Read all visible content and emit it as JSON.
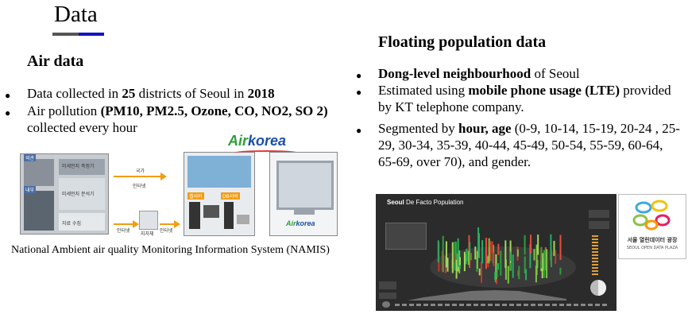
{
  "title": "Data",
  "colors": {
    "bar_gray": "#555555",
    "bar_blue": "#1414c8",
    "airkorea_green": "#2e9e3a",
    "airkorea_blue": "#1b4fa8",
    "arrow": "#f39c12"
  },
  "air": {
    "heading": "Air data",
    "b1": {
      "pre": "Data collected in ",
      "n": "25",
      "mid": " districts of Seoul in ",
      "year": "2018"
    },
    "b2": {
      "pre": "Air pollution ",
      "pollutants": "(PM10, PM2.5, Ozone, CO, NO2, SO 2)",
      "post": " collected every hour"
    },
    "figure": {
      "logo_air": "Air",
      "logo_korea": "korea",
      "label_guk": "국가",
      "label_internet": "인터넷",
      "label_web": "웹서버",
      "label_db": "DB서버",
      "label_inner": "내부",
      "label_outer": "외관",
      "label_local": "지자체",
      "label_internet2": "인터넷",
      "label_internet3": "인터넷",
      "label_analyzer": "미세먼지 분석기",
      "label_logger": "자료 수집",
      "label_pm": "미세먼지 측정기",
      "label_station": "측정소",
      "monitor_logo_air": "Air",
      "monitor_logo_korea": "korea"
    },
    "caption": "National Ambient air quality Monitoring Information System (NAMIS)"
  },
  "floating": {
    "heading": "Floating population data",
    "b1": {
      "bold": "Dong-level neighbourhood",
      "post": " of Seoul"
    },
    "b2": {
      "pre": "Estimated using ",
      "bold": "mobile phone usage (LTE)",
      "post": " provided by KT telephone company."
    },
    "b3": {
      "pre": " Segmented by ",
      "bold": "hour, age",
      "post": " (0-9, 10-14, 15-19, 20-24 ,  25-29, 30-34, 35-39, 40-44, 45-49, 50-54, 55-59, 60-64, 65-69, over 70), and gender."
    },
    "dashboard": {
      "title_bold": "Seoul",
      "title_rest": " De Facto Population"
    },
    "logo": {
      "kr": "서울 열린데이터 광장",
      "en": "SEOUL OPEN DATA PLAZA"
    }
  }
}
